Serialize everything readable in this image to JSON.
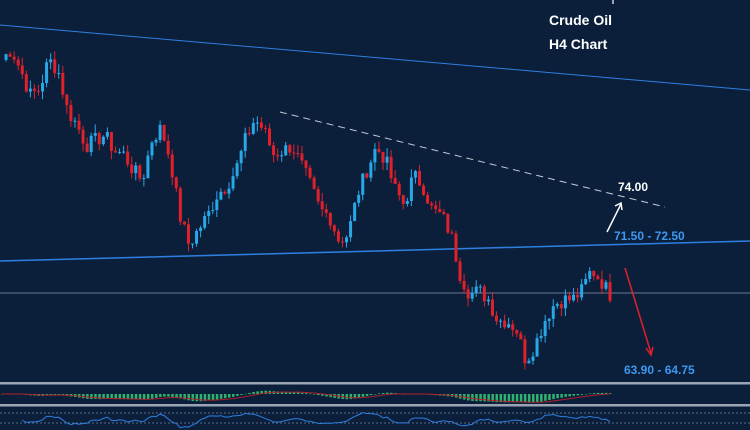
{
  "header": {
    "title_line1": "Crude Oil",
    "title_line2": "H4  Chart"
  },
  "labels": {
    "target_up": "74.00",
    "resistance_zone": "71.50 - 72.50",
    "target_down": "63.90 - 64.75"
  },
  "colors": {
    "background": "#0b1f3b",
    "bull": "#29a8e8",
    "bear": "#e0202a",
    "trendline": "#2f7fe0",
    "label_blue": "#3d98f0",
    "macd_hist": "#2fb36e",
    "macd_signal": "#b0202a"
  },
  "chart_data": {
    "type": "candlestick",
    "title": "Crude Oil H4 Chart",
    "price_path": [
      82.3,
      82.9,
      81.7,
      80.3,
      80.6,
      82.3,
      81.7,
      79.4,
      78.6,
      77.4,
      77.7,
      78.0,
      77.1,
      76.9,
      76.0,
      75.4,
      77.7,
      78.4,
      76.6,
      73.4,
      71.7,
      72.6,
      73.4,
      74.6,
      75.1,
      76.0,
      77.7,
      78.9,
      78.3,
      76.9,
      77.1,
      77.4,
      76.3,
      75.1,
      73.7,
      73.4,
      72.0,
      72.3,
      74.6,
      76.0,
      77.3,
      76.6,
      74.9,
      74.0,
      75.7,
      75.1,
      73.7,
      73.4,
      72.3,
      70.0,
      68.9,
      69.1,
      68.6,
      67.4,
      67.4,
      66.9,
      65.1,
      66.0,
      67.4,
      68.3,
      68.6,
      68.6,
      69.1,
      70.3,
      69.7,
      68.9
    ],
    "levels": [
      {
        "name": "resistance zone",
        "low": 71.5,
        "high": 72.5
      },
      {
        "name": "upside target",
        "value": 74.0
      },
      {
        "name": "downside target",
        "low": 63.9,
        "high": 64.75
      }
    ],
    "indicators": [
      "MACD histogram with signal line",
      "oscillator line"
    ]
  }
}
